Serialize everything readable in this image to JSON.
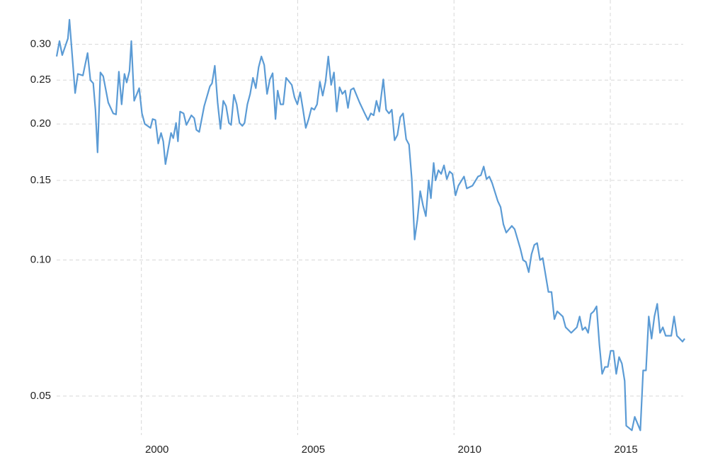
{
  "chart_data": {
    "type": "line",
    "color": "#5b9bd5",
    "ylog": true,
    "grid": true,
    "xlim": [
      1997.29,
      2017.4
    ],
    "xticks": [
      2000,
      2005,
      2010,
      2015
    ],
    "ylim": [
      0.041,
      0.376
    ],
    "yticks": [
      0.05,
      {
        "value": 0.1,
        "label": "0.10"
      },
      0.15,
      {
        "value": 0.2,
        "label": "0.20"
      },
      0.25,
      {
        "value": 0.3,
        "label": "0.30"
      }
    ],
    "x": [
      1997.29,
      1997.38,
      1997.47,
      1997.65,
      1997.7,
      1997.88,
      1997.97,
      1998.13,
      1998.28,
      1998.37,
      1998.46,
      1998.53,
      1998.6,
      1998.69,
      1998.78,
      1998.94,
      1999.1,
      1999.19,
      1999.28,
      1999.37,
      1999.46,
      1999.53,
      1999.62,
      1999.68,
      1999.77,
      1999.93,
      2000.02,
      2000.11,
      2000.29,
      2000.36,
      2000.45,
      2000.54,
      2000.63,
      2000.7,
      2000.77,
      2000.95,
      2001.02,
      2001.11,
      2001.17,
      2001.24,
      2001.35,
      2001.44,
      2001.6,
      2001.69,
      2001.76,
      2001.85,
      2002.01,
      2002.19,
      2002.26,
      2002.35,
      2002.44,
      2002.53,
      2002.62,
      2002.71,
      2002.8,
      2002.87,
      2002.96,
      2003.05,
      2003.14,
      2003.23,
      2003.3,
      2003.39,
      2003.48,
      2003.57,
      2003.66,
      2003.75,
      2003.84,
      2003.93,
      2004.02,
      2004.11,
      2004.2,
      2004.29,
      2004.36,
      2004.45,
      2004.54,
      2004.63,
      2004.81,
      2004.9,
      2004.99,
      2005.08,
      2005.17,
      2005.26,
      2005.35,
      2005.44,
      2005.53,
      2005.62,
      2005.71,
      2005.8,
      2005.89,
      2005.98,
      2006.07,
      2006.16,
      2006.25,
      2006.34,
      2006.43,
      2006.52,
      2006.61,
      2006.7,
      2006.79,
      2006.98,
      2007.16,
      2007.25,
      2007.34,
      2007.43,
      2007.52,
      2007.61,
      2007.74,
      2007.83,
      2007.92,
      2008.01,
      2008.1,
      2008.19,
      2008.28,
      2008.37,
      2008.47,
      2008.56,
      2008.65,
      2008.74,
      2008.83,
      2008.92,
      2009.01,
      2009.1,
      2009.19,
      2009.26,
      2009.35,
      2009.41,
      2009.5,
      2009.59,
      2009.68,
      2009.77,
      2009.86,
      2009.95,
      2010.05,
      2010.14,
      2010.32,
      2010.41,
      2010.59,
      2010.77,
      2010.86,
      2010.95,
      2011.04,
      2011.13,
      2011.22,
      2011.4,
      2011.49,
      2011.58,
      2011.67,
      2011.85,
      2011.94,
      2012.12,
      2012.21,
      2012.3,
      2012.39,
      2012.48,
      2012.57,
      2012.66,
      2012.75,
      2012.84,
      2013.02,
      2013.12,
      2013.21,
      2013.3,
      2013.48,
      2013.57,
      2013.66,
      2013.75,
      2013.93,
      2014.02,
      2014.11,
      2014.2,
      2014.29,
      2014.38,
      2014.47,
      2014.56,
      2014.65,
      2014.74,
      2014.83,
      2014.92,
      2015.01,
      2015.1,
      2015.19,
      2015.28,
      2015.37,
      2015.46,
      2015.51,
      2015.69,
      2015.78,
      2015.96,
      2016.05,
      2016.14,
      2016.23,
      2016.32,
      2016.41,
      2016.5,
      2016.59,
      2016.68,
      2016.77,
      2016.95,
      2017.04,
      2017.13,
      2017.22,
      2017.31,
      2017.38
    ],
    "values": [
      0.282,
      0.305,
      0.284,
      0.309,
      0.34,
      0.234,
      0.258,
      0.256,
      0.287,
      0.25,
      0.246,
      0.215,
      0.173,
      0.26,
      0.255,
      0.223,
      0.211,
      0.21,
      0.261,
      0.221,
      0.258,
      0.247,
      0.262,
      0.305,
      0.225,
      0.24,
      0.211,
      0.2,
      0.196,
      0.205,
      0.204,
      0.181,
      0.191,
      0.183,
      0.163,
      0.191,
      0.186,
      0.201,
      0.183,
      0.213,
      0.211,
      0.199,
      0.209,
      0.206,
      0.194,
      0.192,
      0.219,
      0.242,
      0.246,
      0.269,
      0.223,
      0.195,
      0.225,
      0.219,
      0.201,
      0.199,
      0.232,
      0.221,
      0.201,
      0.198,
      0.201,
      0.221,
      0.233,
      0.253,
      0.24,
      0.267,
      0.282,
      0.27,
      0.233,
      0.251,
      0.259,
      0.205,
      0.237,
      0.221,
      0.221,
      0.253,
      0.244,
      0.229,
      0.221,
      0.235,
      0.215,
      0.196,
      0.205,
      0.217,
      0.215,
      0.221,
      0.248,
      0.231,
      0.248,
      0.282,
      0.244,
      0.26,
      0.213,
      0.241,
      0.233,
      0.237,
      0.217,
      0.238,
      0.24,
      0.223,
      0.21,
      0.204,
      0.211,
      0.209,
      0.225,
      0.213,
      0.251,
      0.215,
      0.211,
      0.215,
      0.184,
      0.189,
      0.207,
      0.211,
      0.185,
      0.18,
      0.151,
      0.111,
      0.123,
      0.142,
      0.132,
      0.125,
      0.15,
      0.137,
      0.164,
      0.15,
      0.158,
      0.155,
      0.162,
      0.151,
      0.157,
      0.155,
      0.139,
      0.146,
      0.153,
      0.144,
      0.146,
      0.153,
      0.154,
      0.161,
      0.151,
      0.153,
      0.148,
      0.135,
      0.131,
      0.12,
      0.115,
      0.119,
      0.117,
      0.106,
      0.1,
      0.099,
      0.094,
      0.103,
      0.108,
      0.109,
      0.1,
      0.101,
      0.085,
      0.085,
      0.074,
      0.077,
      0.075,
      0.071,
      0.07,
      0.069,
      0.071,
      0.075,
      0.07,
      0.071,
      0.069,
      0.076,
      0.077,
      0.079,
      0.065,
      0.056,
      0.058,
      0.058,
      0.063,
      0.063,
      0.056,
      0.061,
      0.059,
      0.054,
      0.043,
      0.042,
      0.045,
      0.042,
      0.057,
      0.057,
      0.075,
      0.067,
      0.075,
      0.08,
      0.069,
      0.071,
      0.068,
      0.068,
      0.075,
      0.068,
      0.067,
      0.066,
      0.067
    ]
  }
}
